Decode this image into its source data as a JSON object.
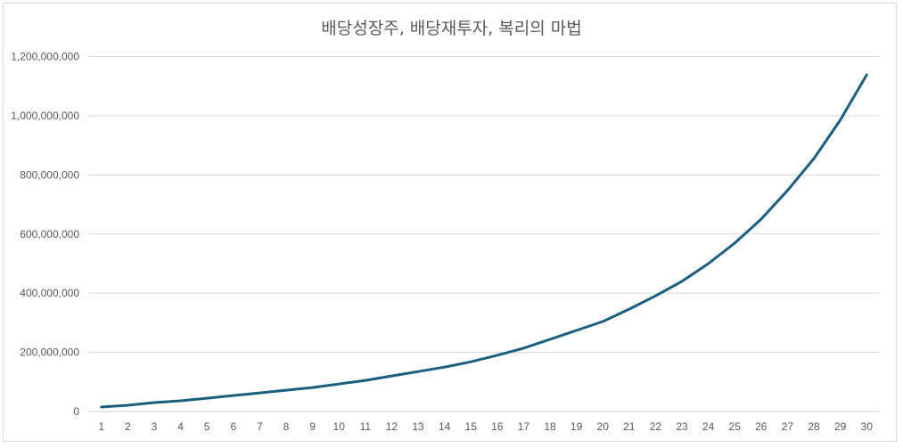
{
  "chart_data": {
    "type": "line",
    "title": "배당성장주, 배당재투자, 복리의 마법",
    "xlabel": "",
    "ylabel": "",
    "x": [
      1,
      2,
      3,
      4,
      5,
      6,
      7,
      8,
      9,
      10,
      11,
      12,
      13,
      14,
      15,
      16,
      17,
      18,
      19,
      20,
      21,
      22,
      23,
      24,
      25,
      26,
      27,
      28,
      29,
      30
    ],
    "series": [
      {
        "values": [
          15000000,
          21000000,
          30000000,
          36000000,
          45000000,
          54000000,
          63000000,
          72000000,
          81000000,
          93000000,
          105000000,
          120000000,
          135000000,
          150000000,
          168000000,
          190000000,
          214000000,
          244000000,
          274000000,
          304000000,
          346000000,
          391000000,
          440000000,
          500000000,
          569000000,
          650000000,
          747000000,
          855000000,
          985000000,
          1138000000
        ],
        "color": "#1a5e80"
      }
    ],
    "ylim": [
      0,
      1200000000
    ],
    "yticks": [
      "0",
      "200,000,000",
      "400,000,000",
      "600,000,000",
      "800,000,000",
      "1,000,000,000",
      "1,200,000,000"
    ],
    "grid": true,
    "legend": "none"
  }
}
